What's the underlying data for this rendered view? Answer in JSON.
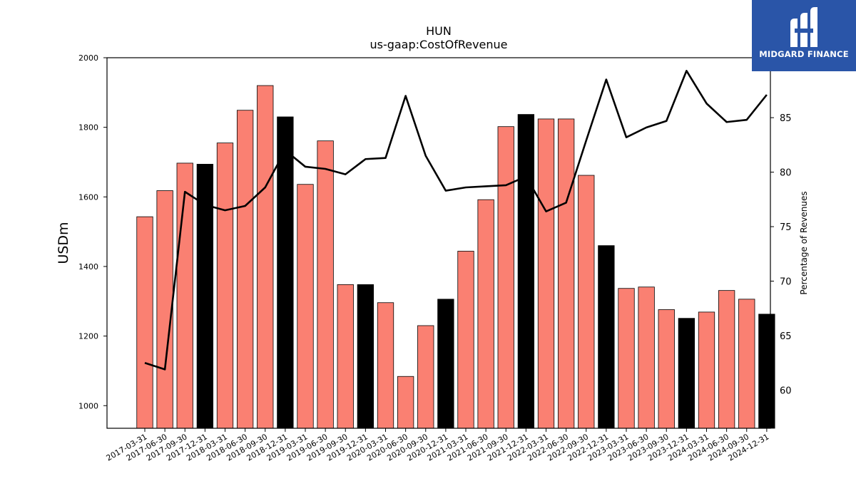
{
  "chart_data": {
    "type": "bar",
    "title": "HUN",
    "subtitle": "us-gaap:CostOfRevenue",
    "ylabel": "USDm",
    "y2label": "Percentage of Revenues",
    "ylim": [
      935,
      2000
    ],
    "y2lim": [
      56.5,
      90.5
    ],
    "yticks": [
      1000,
      1200,
      1400,
      1600,
      1800,
      2000
    ],
    "y2ticks": [
      60,
      65,
      70,
      75,
      80,
      85
    ],
    "categories": [
      "2017-03-31",
      "2017-06-30",
      "2017-09-30",
      "2017-12-31",
      "2018-03-31",
      "2018-06-30",
      "2018-09-30",
      "2018-12-31",
      "2019-03-31",
      "2019-06-30",
      "2019-09-30",
      "2019-12-31",
      "2020-03-31",
      "2020-06-30",
      "2020-09-30",
      "2020-12-31",
      "2021-03-31",
      "2021-06-30",
      "2021-09-30",
      "2021-12-31",
      "2022-03-31",
      "2022-06-30",
      "2022-09-30",
      "2022-12-31",
      "2023-03-31",
      "2023-06-30",
      "2023-09-30",
      "2023-12-31",
      "2024-03-31",
      "2024-06-30",
      "2024-09-30",
      "2024-12-31"
    ],
    "series": [
      {
        "values": [
          1543,
          1618,
          1697,
          1694,
          1755,
          1849,
          1920,
          1830,
          1636,
          1761,
          1348,
          1348,
          1296,
          1084,
          1230,
          1306,
          1444,
          1592,
          1802,
          1837,
          1824,
          1824,
          1662,
          1460,
          1337,
          1341,
          1276,
          1251,
          1269,
          1331,
          1306,
          1263
        ]
      },
      {
        "type": "line",
        "axis": "right",
        "values": [
          62.5,
          61.9,
          78.2,
          77.0,
          76.5,
          76.9,
          78.6,
          82.0,
          80.5,
          80.3,
          79.8,
          81.2,
          81.3,
          87.0,
          81.5,
          78.3,
          78.6,
          78.7,
          78.8,
          79.6,
          76.4,
          77.2,
          82.9,
          88.5,
          83.2,
          84.1,
          84.7,
          89.3,
          86.3,
          84.6,
          84.8,
          87.1
        ]
      }
    ],
    "bar_colors": {
      "normal": "#fa8072",
      "year_end": "#000000"
    },
    "line_color": "#000000"
  },
  "logo": {
    "text": "MIDGARD FINANCE",
    "color": "#2a55a8"
  }
}
